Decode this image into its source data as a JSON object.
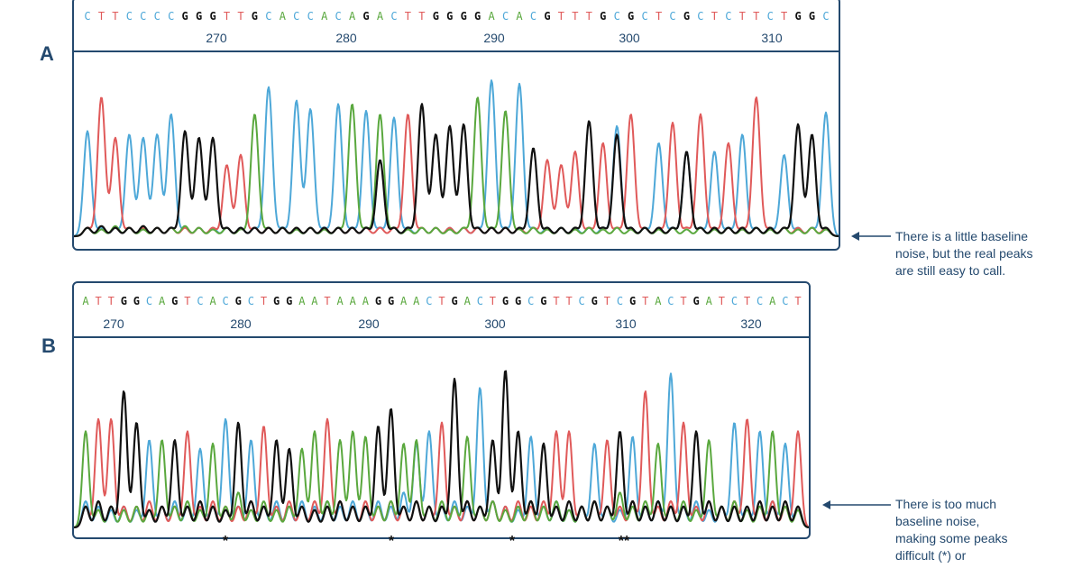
{
  "colors": {
    "A": "#5aa83e",
    "C": "#4ea8d8",
    "G": "#111111",
    "T": "#e05a5a",
    "frame": "#24496e"
  },
  "panels": {
    "A": {
      "label": "A",
      "sequence": "CTTCCCCGGGTTGCACCACAGACTTGGGGACACGTTTGCGCTCGCTCTTCTGGC",
      "positions": [
        "270",
        "280",
        "290",
        "300",
        "310"
      ],
      "annotation": [
        "There is a little baseline",
        "noise, but the real peaks",
        "are still easy to call."
      ],
      "markers": []
    },
    "B": {
      "label": "B",
      "sequence": "ATTGGCAGTCACGCTGGAATAAAGGAACTGACTGGCGTTCGTCGTACTGATCTCACT",
      "positions": [
        "270",
        "280",
        "290",
        "300",
        "310",
        "320"
      ],
      "annotation": [
        "There is too much",
        "baseline noise,",
        "making some peaks",
        "difficult (*) or"
      ],
      "markers": [
        "*",
        "*",
        "*",
        "**"
      ]
    }
  },
  "chart_data": [
    {
      "type": "line",
      "title": "",
      "panel": "A",
      "xlabel": "",
      "ylabel": "",
      "x_ticks": [
        "270",
        "280",
        "290",
        "300",
        "310"
      ],
      "base_calls": "CTTCCCCGGGTTGCACCACAGACTTGGGGACACGTTTGCGCTCGCTCTTCTGGC",
      "series": [
        {
          "name": "A",
          "peak_heights": [
            0.05,
            0.04,
            0.06,
            0.05,
            0.04,
            0.05,
            0.05,
            0.06,
            0.05,
            0.04,
            0.05,
            0.04,
            0.72,
            0.05,
            0.05,
            0.04,
            0.05,
            0.04,
            0.05,
            0.78,
            0.05,
            0.72,
            0.05,
            0.04,
            0.05,
            0.05,
            0.04,
            0.05,
            0.82,
            0.05,
            0.74,
            0.04,
            0.05,
            0.04,
            0.05,
            0.04,
            0.05,
            0.04,
            0.05,
            0.04,
            0.05,
            0.04,
            0.05,
            0.04,
            0.05,
            0.04,
            0.05,
            0.04,
            0.05,
            0.04,
            0.05,
            0.04,
            0.05,
            0.04
          ]
        },
        {
          "name": "C",
          "peak_heights": [
            0.62,
            0.05,
            0.05,
            0.6,
            0.58,
            0.6,
            0.72,
            0.05,
            0.05,
            0.05,
            0.05,
            0.05,
            0.05,
            0.88,
            0.05,
            0.8,
            0.75,
            0.05,
            0.78,
            0.05,
            0.74,
            0.05,
            0.7,
            0.05,
            0.05,
            0.05,
            0.05,
            0.05,
            0.05,
            0.92,
            0.05,
            0.9,
            0.05,
            0.05,
            0.05,
            0.05,
            0.05,
            0.05,
            0.65,
            0.05,
            0.05,
            0.55,
            0.05,
            0.5,
            0.05,
            0.5,
            0.05,
            0.6,
            0.05,
            0.05,
            0.48,
            0.05,
            0.05,
            0.73
          ]
        },
        {
          "name": "G",
          "peak_heights": [
            0.05,
            0.06,
            0.05,
            0.05,
            0.06,
            0.05,
            0.05,
            0.62,
            0.58,
            0.58,
            0.05,
            0.05,
            0.05,
            0.05,
            0.05,
            0.05,
            0.05,
            0.05,
            0.05,
            0.05,
            0.05,
            0.45,
            0.05,
            0.05,
            0.78,
            0.6,
            0.65,
            0.66,
            0.05,
            0.05,
            0.05,
            0.05,
            0.52,
            0.05,
            0.05,
            0.05,
            0.68,
            0.05,
            0.6,
            0.05,
            0.05,
            0.05,
            0.05,
            0.5,
            0.05,
            0.05,
            0.05,
            0.05,
            0.05,
            0.05,
            0.05,
            0.66,
            0.6,
            0.05
          ]
        },
        {
          "name": "T",
          "peak_heights": [
            0.05,
            0.82,
            0.58,
            0.05,
            0.05,
            0.05,
            0.05,
            0.05,
            0.05,
            0.05,
            0.42,
            0.48,
            0.05,
            0.05,
            0.05,
            0.05,
            0.05,
            0.05,
            0.05,
            0.05,
            0.05,
            0.05,
            0.05,
            0.72,
            0.05,
            0.05,
            0.05,
            0.05,
            0.05,
            0.05,
            0.05,
            0.05,
            0.05,
            0.45,
            0.42,
            0.5,
            0.05,
            0.55,
            0.05,
            0.72,
            0.05,
            0.05,
            0.67,
            0.05,
            0.72,
            0.05,
            0.55,
            0.05,
            0.82,
            0.05,
            0.05,
            0.05,
            0.05,
            0.05
          ]
        }
      ]
    },
    {
      "type": "line",
      "title": "",
      "panel": "B",
      "xlabel": "",
      "ylabel": "",
      "x_ticks": [
        "270",
        "280",
        "290",
        "300",
        "310",
        "320"
      ],
      "base_calls": "ATTGGCAGTCACGCTGGAATAAAGGAACTGACTGGCGTTCGTCGTACTGATCTCACT",
      "series": [
        {
          "name": "A",
          "peak_heights": [
            0.55,
            0.1,
            0.12,
            0.1,
            0.12,
            0.1,
            0.5,
            0.12,
            0.15,
            0.1,
            0.48,
            0.12,
            0.2,
            0.1,
            0.15,
            0.1,
            0.12,
            0.45,
            0.55,
            0.15,
            0.5,
            0.55,
            0.52,
            0.12,
            0.15,
            0.48,
            0.5,
            0.12,
            0.15,
            0.12,
            0.52,
            0.12,
            0.15,
            0.1,
            0.12,
            0.15,
            0.12,
            0.15,
            0.1,
            0.12,
            0.15,
            0.12,
            0.2,
            0.12,
            0.15,
            0.48,
            0.12,
            0.15,
            0.1,
            0.5,
            0.12,
            0.15,
            0.1,
            0.12,
            0.55,
            0.12,
            0.1
          ]
        },
        {
          "name": "C",
          "peak_heights": [
            0.15,
            0.12,
            0.1,
            0.12,
            0.1,
            0.5,
            0.12,
            0.15,
            0.12,
            0.45,
            0.12,
            0.62,
            0.12,
            0.5,
            0.12,
            0.15,
            0.12,
            0.15,
            0.12,
            0.15,
            0.12,
            0.15,
            0.12,
            0.15,
            0.12,
            0.2,
            0.48,
            0.55,
            0.12,
            0.15,
            0.12,
            0.8,
            0.15,
            0.12,
            0.1,
            0.52,
            0.12,
            0.15,
            0.1,
            0.12,
            0.48,
            0.12,
            0.1,
            0.52,
            0.12,
            0.15,
            0.88,
            0.12,
            0.15,
            0.1,
            0.12,
            0.6,
            0.12,
            0.55,
            0.15,
            0.48,
            0.1
          ]
        },
        {
          "name": "G",
          "peak_heights": [
            0.12,
            0.15,
            0.12,
            0.78,
            0.6,
            0.1,
            0.12,
            0.5,
            0.12,
            0.15,
            0.12,
            0.1,
            0.6,
            0.15,
            0.12,
            0.5,
            0.45,
            0.12,
            0.1,
            0.12,
            0.15,
            0.12,
            0.12,
            0.58,
            0.68,
            0.12,
            0.15,
            0.12,
            0.12,
            0.85,
            0.15,
            0.12,
            0.5,
            0.9,
            0.55,
            0.15,
            0.48,
            0.12,
            0.15,
            0.12,
            0.15,
            0.12,
            0.55,
            0.15,
            0.12,
            0.15,
            0.12,
            0.12,
            0.55,
            0.15,
            0.12,
            0.12,
            0.12,
            0.15,
            0.12,
            0.15,
            0.12
          ]
        },
        {
          "name": "T",
          "peak_heights": [
            0.12,
            0.62,
            0.62,
            0.12,
            0.12,
            0.15,
            0.12,
            0.12,
            0.55,
            0.12,
            0.15,
            0.12,
            0.12,
            0.15,
            0.58,
            0.12,
            0.15,
            0.12,
            0.15,
            0.62,
            0.15,
            0.12,
            0.15,
            0.12,
            0.15,
            0.12,
            0.15,
            0.12,
            0.6,
            0.12,
            0.15,
            0.12,
            0.15,
            0.12,
            0.15,
            0.12,
            0.15,
            0.55,
            0.55,
            0.12,
            0.15,
            0.5,
            0.12,
            0.15,
            0.78,
            0.12,
            0.15,
            0.6,
            0.12,
            0.15,
            0.12,
            0.15,
            0.62,
            0.12,
            0.15,
            0.12,
            0.55
          ]
        }
      ]
    }
  ]
}
